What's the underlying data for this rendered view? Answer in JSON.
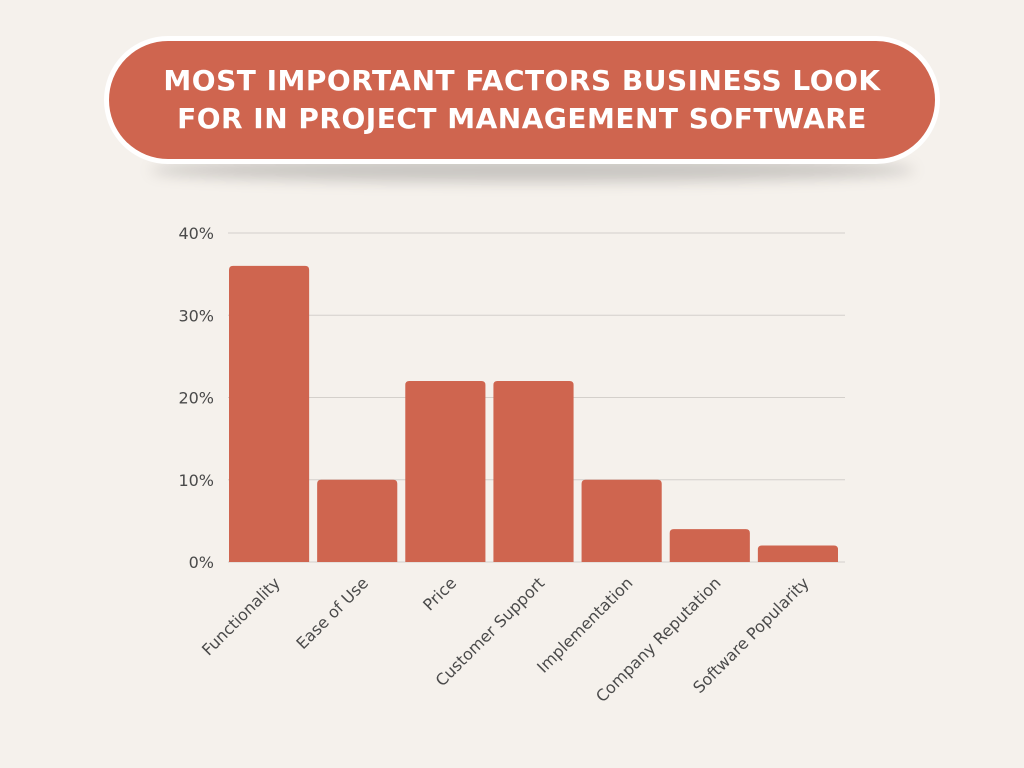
{
  "chart_data": {
    "type": "bar",
    "title": "MOST IMPORTANT FACTORS BUSINESS LOOK FOR IN PROJECT MANAGEMENT SOFTWARE",
    "xlabel": "",
    "ylabel": "",
    "categories": [
      "Functionality",
      "Ease of Use",
      "Price",
      "Customer Support",
      "Implementation",
      "Company Reputation",
      "Software Popularity"
    ],
    "values": [
      36,
      10,
      22,
      22,
      10,
      4,
      2
    ],
    "ylim": [
      0,
      40
    ],
    "yticks": [
      0,
      10,
      20,
      30,
      40
    ],
    "ytick_labels": [
      "0%",
      "10%",
      "20%",
      "30%",
      "40%"
    ],
    "grid": true,
    "bar_color": "#cf654f"
  },
  "colors": {
    "background": "#f5f1ec",
    "accent": "#cf654f",
    "gridline": "#d4d0cb",
    "axis_text": "#4a4a4a"
  }
}
